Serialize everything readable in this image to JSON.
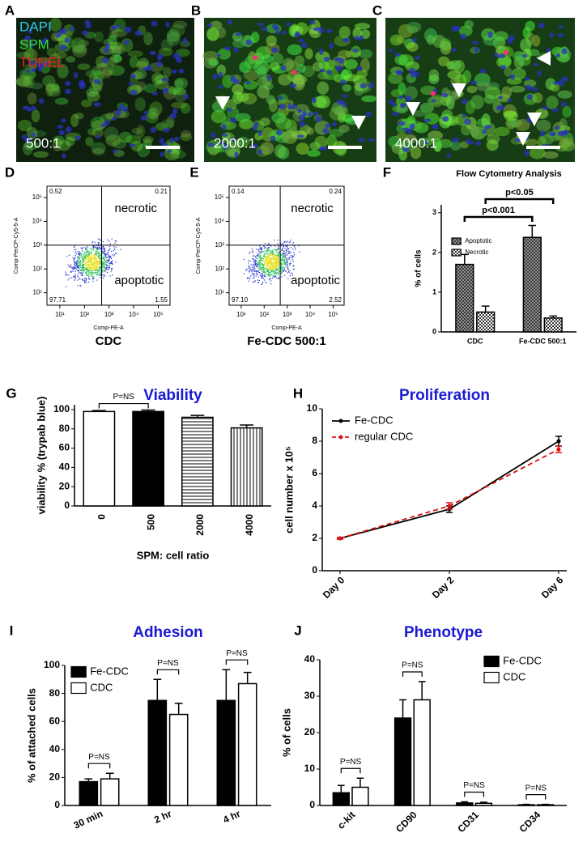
{
  "micrographs": [
    {
      "panel": "A",
      "legend": [
        "DAPI",
        "SPM",
        "TUNEL"
      ],
      "legend_colors": [
        "#33c8f0",
        "#33dd33",
        "#ee2020"
      ],
      "ratio": "500:1"
    },
    {
      "panel": "B",
      "ratio": "2000:1"
    },
    {
      "panel": "C",
      "ratio": "4000:1"
    }
  ],
  "chart_data": [
    {
      "type": "flow",
      "panel": "D",
      "xlabel": "Comp-PE-A",
      "ylabel": "Comp-PerCP-Cy5-5-A",
      "caption": "CDC",
      "log": true,
      "xlim": [
        3,
        300000
      ],
      "ylim": [
        3,
        300000
      ],
      "xticks": [
        {
          "value": 10,
          "label": "10¹"
        },
        {
          "value": 100,
          "label": "10²"
        },
        {
          "value": 1000,
          "label": "10³"
        },
        {
          "value": 10000,
          "label": "10⁴"
        },
        {
          "value": 100000,
          "label": "10⁵"
        }
      ],
      "yticks": [
        {
          "value": 10,
          "label": "10¹"
        },
        {
          "value": 100,
          "label": "10²"
        },
        {
          "value": 1000,
          "label": "10³"
        },
        {
          "value": 10000,
          "label": "10⁴"
        },
        {
          "value": 100000,
          "label": "10⁵"
        }
      ],
      "quadrant_gate": [
        500,
        1000
      ],
      "annotations": [
        "necrotic",
        "apoptotic"
      ],
      "quadrants": {
        "values": [
          0.52,
          0.21,
          97.71,
          1.55
        ],
        "value_labels": [
          "0.52",
          "0.21",
          "97.71",
          "1.55"
        ]
      }
    },
    {
      "type": "flow",
      "panel": "E",
      "xlabel": "Comp-PE-A",
      "ylabel": "Comp-PerCP-Cy5-5-A",
      "caption": "Fe-CDC 500:1",
      "log": true,
      "xlim": [
        3,
        300000
      ],
      "ylim": [
        3,
        300000
      ],
      "xticks": [
        {
          "value": 10,
          "label": "10¹"
        },
        {
          "value": 100,
          "label": "10²"
        },
        {
          "value": 1000,
          "label": "10³"
        },
        {
          "value": 10000,
          "label": "10⁴"
        },
        {
          "value": 100000,
          "label": "10⁵"
        }
      ],
      "yticks": [
        {
          "value": 10,
          "label": "10¹"
        },
        {
          "value": 100,
          "label": "10²"
        },
        {
          "value": 1000,
          "label": "10³"
        },
        {
          "value": 10000,
          "label": "10⁴"
        },
        {
          "value": 100000,
          "label": "10⁵"
        }
      ],
      "quadrant_gate": [
        500,
        1000
      ],
      "annotations": [
        "necrotic",
        "apoptotic"
      ],
      "quadrants": {
        "values": [
          0.14,
          0.24,
          97.1,
          2.52
        ],
        "value_labels": [
          "0.14",
          "0.24",
          "97.10",
          "2.52"
        ]
      }
    },
    {
      "type": "bar",
      "panel": "F",
      "title": "Flow Cytometry Analysis",
      "ylabel": "% of cells",
      "categories": [
        "CDC",
        "Fe-CDC 500:1"
      ],
      "series": [
        {
          "name": "Apoptotic",
          "color": "#b0b0b0",
          "values": [
            1.7,
            2.38
          ],
          "errors": [
            0.25,
            0.3
          ]
        },
        {
          "name": "Necrotic",
          "color": "#ffffff",
          "values": [
            0.5,
            0.35
          ],
          "errors": [
            0.15,
            0.05
          ]
        }
      ],
      "ylim": [
        0,
        3.2
      ],
      "yticks": [
        0,
        1,
        2,
        3
      ],
      "annotations": [
        "p<0.001",
        "p<0.05"
      ]
    },
    {
      "type": "bar",
      "panel": "G",
      "title": "Viability",
      "title_color": "#1a1ad0",
      "ylabel": "viability % (trypab blue)",
      "xlabel": "SPM: cell ratio",
      "categories": [
        "0",
        "500",
        "2000",
        "4000"
      ],
      "values": [
        98,
        98,
        92,
        81
      ],
      "errors": [
        1,
        1.5,
        2,
        3
      ],
      "colors": [
        "#ffffff",
        "#000000",
        "#ffffff",
        "#ffffff"
      ],
      "ylim": [
        0,
        105
      ],
      "yticks": [
        0,
        20,
        40,
        60,
        80,
        100
      ],
      "annotations": [
        "P=NS"
      ]
    },
    {
      "type": "line",
      "panel": "H",
      "title": "Proliferation",
      "title_color": "#1a1ad0",
      "ylabel": "cell number x 10⁵",
      "categories": [
        "Day 0",
        "Day 2",
        "Day 6"
      ],
      "series": [
        {
          "name": "Fe-CDC",
          "color": "#000000",
          "values": [
            2,
            3.8,
            8
          ],
          "errors": [
            0.05,
            0.2,
            0.3
          ]
        },
        {
          "name": "regular CDC",
          "color": "#dd1111",
          "dashed": true,
          "values": [
            2,
            4,
            7.5
          ],
          "errors": [
            0.05,
            0.2,
            0.2
          ]
        }
      ],
      "ylim": [
        0,
        10
      ],
      "yticks": [
        0,
        2,
        4,
        6,
        8,
        10
      ]
    },
    {
      "type": "bar",
      "panel": "I",
      "title": "Adhesion",
      "title_color": "#1a1ad0",
      "ylabel": "% of attached cells",
      "categories": [
        "30 min",
        "2 hr",
        "4 hr"
      ],
      "series": [
        {
          "name": "Fe-CDC",
          "color": "#000000",
          "values": [
            17,
            75,
            75
          ],
          "errors": [
            2,
            15,
            22
          ]
        },
        {
          "name": "CDC",
          "color": "#ffffff",
          "values": [
            19,
            65,
            87
          ],
          "errors": [
            4,
            8,
            8
          ]
        }
      ],
      "ylim": [
        0,
        100
      ],
      "yticks": [
        0,
        20,
        40,
        60,
        80,
        100
      ],
      "annotations": [
        "P=NS",
        "P=NS",
        "P=NS"
      ]
    },
    {
      "type": "bar",
      "panel": "J",
      "title": "Phenotype",
      "title_color": "#1a1ad0",
      "ylabel": "% of cells",
      "categories": [
        "c-kit",
        "CD90",
        "CD31",
        "CD34"
      ],
      "series": [
        {
          "name": "Fe-CDC",
          "color": "#000000",
          "values": [
            3.5,
            24,
            0.7,
            0.2
          ],
          "errors": [
            2,
            5,
            0.3,
            0.1
          ]
        },
        {
          "name": "CDC",
          "color": "#ffffff",
          "values": [
            5,
            29,
            0.6,
            0.2
          ],
          "errors": [
            2.5,
            5,
            0.3,
            0.1
          ]
        }
      ],
      "ylim": [
        0,
        40
      ],
      "yticks": [
        0,
        10,
        20,
        30,
        40
      ],
      "annotations": [
        "P=NS",
        "P=NS",
        "P=NS",
        "P=NS"
      ]
    }
  ]
}
